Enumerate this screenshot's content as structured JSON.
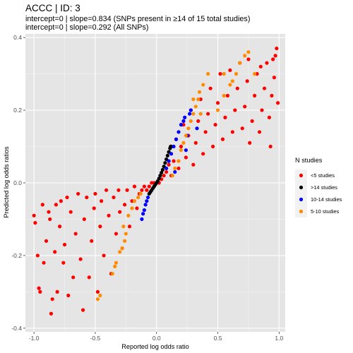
{
  "chart_data": {
    "type": "scatter",
    "title": "ACCC | ID: 3",
    "subtitle_lines": [
      "intercept=0 | slope=0.834 (SNPs present in ≥14 of 15 total studies)",
      "intercept=0 | slope=0.292 (All SNPs)"
    ],
    "xlabel": "Reported log odds ratio",
    "ylabel": "Predicted log odds ratios",
    "xlim": [
      -1.07,
      1.05
    ],
    "ylim": [
      -0.41,
      0.41
    ],
    "x_ticks": [
      -1.0,
      -0.5,
      0.0,
      0.5,
      1.0
    ],
    "x_tick_labels": [
      "-1.0",
      "-0.5",
      "0.0",
      "0.5",
      "1.0"
    ],
    "y_ticks": [
      -0.4,
      -0.2,
      0.0,
      0.2,
      0.4
    ],
    "y_tick_labels": [
      "-0.4",
      "-0.2",
      "0.0",
      "0.2",
      "0.4"
    ],
    "grid": true,
    "background": "#e5e5e5",
    "legend": {
      "title": "N studies",
      "position": "right",
      "entries": [
        {
          "label": "<5 studies",
          "color": "#ff0000"
        },
        {
          "label": ">14 studies",
          "color": "#000000"
        },
        {
          "label": "10-14 studies",
          "color": "#0000ff"
        },
        {
          "label": "5-10 studies",
          "color": "#ff8c00"
        }
      ]
    },
    "series": [
      {
        "name": "<5 studies",
        "color": "#ff0000",
        "points": [
          [
            -1.0,
            -0.09
          ],
          [
            -0.99,
            -0.11
          ],
          [
            -0.97,
            -0.2
          ],
          [
            -0.96,
            -0.29
          ],
          [
            -0.95,
            -0.3
          ],
          [
            -0.93,
            -0.06
          ],
          [
            -0.92,
            -0.22
          ],
          [
            -0.9,
            -0.16
          ],
          [
            -0.88,
            -0.08
          ],
          [
            -0.87,
            -0.1
          ],
          [
            -0.86,
            -0.36
          ],
          [
            -0.85,
            -0.32
          ],
          [
            -0.83,
            -0.19
          ],
          [
            -0.82,
            -0.06
          ],
          [
            -0.81,
            -0.3
          ],
          [
            -0.79,
            -0.12
          ],
          [
            -0.78,
            -0.05
          ],
          [
            -0.76,
            -0.22
          ],
          [
            -0.75,
            -0.17
          ],
          [
            -0.73,
            -0.04
          ],
          [
            -0.72,
            -0.31
          ],
          [
            -0.7,
            -0.08
          ],
          [
            -0.68,
            -0.26
          ],
          [
            -0.66,
            -0.14
          ],
          [
            -0.64,
            -0.03
          ],
          [
            -0.62,
            -0.21
          ],
          [
            -0.6,
            -0.35
          ],
          [
            -0.59,
            -0.1
          ],
          [
            -0.57,
            -0.04
          ],
          [
            -0.55,
            -0.26
          ],
          [
            -0.53,
            -0.16
          ],
          [
            -0.51,
            -0.07
          ],
          [
            -0.5,
            -0.03
          ],
          [
            -0.48,
            -0.3
          ],
          [
            -0.46,
            -0.12
          ],
          [
            -0.45,
            -0.05
          ],
          [
            -0.43,
            -0.2
          ],
          [
            -0.41,
            -0.02
          ],
          [
            -0.39,
            -0.09
          ],
          [
            -0.37,
            -0.25
          ],
          [
            -0.35,
            -0.04
          ],
          [
            -0.33,
            -0.14
          ],
          [
            -0.31,
            -0.02
          ],
          [
            -0.3,
            -0.08
          ],
          [
            -0.28,
            -0.18
          ],
          [
            -0.26,
            -0.06
          ],
          [
            -0.24,
            -0.02
          ],
          [
            -0.22,
            -0.12
          ],
          [
            -0.2,
            -0.05
          ],
          [
            -0.18,
            -0.01
          ],
          [
            -0.16,
            -0.07
          ],
          [
            -0.14,
            -0.03
          ],
          [
            -0.12,
            -0.02
          ],
          [
            -0.1,
            -0.01
          ],
          [
            -0.08,
            -0.02
          ],
          [
            -0.06,
            -0.01
          ],
          [
            -0.04,
            0.0
          ],
          [
            -0.02,
            0.0
          ],
          [
            0.02,
            0.0
          ],
          [
            0.04,
            0.01
          ],
          [
            0.06,
            0.02
          ],
          [
            0.08,
            0.03
          ],
          [
            0.1,
            0.05
          ],
          [
            0.12,
            0.02
          ],
          [
            0.14,
            0.06
          ],
          [
            0.16,
            0.12
          ],
          [
            0.18,
            0.04
          ],
          [
            0.2,
            0.1
          ],
          [
            0.22,
            0.16
          ],
          [
            0.24,
            0.07
          ],
          [
            0.26,
            0.13
          ],
          [
            0.28,
            0.2
          ],
          [
            0.3,
            0.05
          ],
          [
            0.32,
            0.11
          ],
          [
            0.34,
            0.17
          ],
          [
            0.36,
            0.23
          ],
          [
            0.38,
            0.08
          ],
          [
            0.4,
            0.14
          ],
          [
            0.42,
            0.19
          ],
          [
            0.44,
            0.26
          ],
          [
            0.46,
            0.1
          ],
          [
            0.48,
            0.16
          ],
          [
            0.5,
            0.22
          ],
          [
            0.52,
            0.3
          ],
          [
            0.54,
            0.12
          ],
          [
            0.56,
            0.18
          ],
          [
            0.58,
            0.24
          ],
          [
            0.6,
            0.31
          ],
          [
            0.62,
            0.14
          ],
          [
            0.64,
            0.2
          ],
          [
            0.66,
            0.26
          ],
          [
            0.68,
            0.33
          ],
          [
            0.7,
            0.15
          ],
          [
            0.72,
            0.21
          ],
          [
            0.74,
            0.28
          ],
          [
            0.76,
            0.11
          ],
          [
            0.78,
            0.17
          ],
          [
            0.8,
            0.24
          ],
          [
            0.82,
            0.3
          ],
          [
            0.84,
            0.14
          ],
          [
            0.86,
            0.2
          ],
          [
            0.88,
            0.26
          ],
          [
            0.9,
            0.33
          ],
          [
            0.92,
            0.18
          ],
          [
            0.94,
            0.24
          ],
          [
            0.96,
            0.29
          ],
          [
            0.98,
            0.37
          ],
          [
            0.99,
            0.22
          ],
          [
            0.97,
            0.35
          ],
          [
            0.95,
            0.34
          ],
          [
            0.93,
            0.1
          ],
          [
            0.85,
            0.32
          ],
          [
            0.75,
            0.34
          ]
        ]
      },
      {
        "name": ">14 studies",
        "color": "#000000",
        "points": [
          [
            -0.06,
            -0.03
          ],
          [
            -0.05,
            -0.025
          ],
          [
            -0.04,
            -0.02
          ],
          [
            -0.03,
            -0.015
          ],
          [
            -0.02,
            -0.01
          ],
          [
            -0.01,
            -0.005
          ],
          [
            0.0,
            0.0
          ],
          [
            0.01,
            0.005
          ],
          [
            0.02,
            0.012
          ],
          [
            0.03,
            0.02
          ],
          [
            0.04,
            0.028
          ],
          [
            0.05,
            0.036
          ],
          [
            0.06,
            0.045
          ],
          [
            0.07,
            0.055
          ],
          [
            0.08,
            0.065
          ],
          [
            0.09,
            0.075
          ],
          [
            0.1,
            0.085
          ],
          [
            0.11,
            0.095
          ],
          [
            0.115,
            0.1
          ],
          [
            0.12,
            0.1
          ]
        ]
      },
      {
        "name": "10-14 studies",
        "color": "#0000ff",
        "points": [
          [
            -0.12,
            -0.1
          ],
          [
            -0.11,
            -0.085
          ],
          [
            -0.1,
            -0.075
          ],
          [
            -0.09,
            -0.06
          ],
          [
            -0.08,
            -0.05
          ],
          [
            -0.07,
            -0.04
          ],
          [
            0.08,
            0.04
          ],
          [
            0.1,
            0.06
          ],
          [
            0.12,
            0.08
          ],
          [
            0.14,
            0.1
          ],
          [
            0.16,
            0.12
          ],
          [
            0.18,
            0.14
          ],
          [
            0.2,
            0.16
          ],
          [
            0.22,
            0.17
          ],
          [
            0.25,
            0.13
          ],
          [
            0.28,
            0.2
          ],
          [
            0.33,
            0.15
          ],
          [
            0.27,
            0.19
          ],
          [
            0.24,
            0.09
          ],
          [
            0.15,
            0.03
          ],
          [
            0.23,
            0.18
          ]
        ]
      },
      {
        "name": "5-10 studies",
        "color": "#ff8c00",
        "points": [
          [
            -0.48,
            -0.32
          ],
          [
            -0.46,
            -0.31
          ],
          [
            -0.36,
            -0.25
          ],
          [
            -0.33,
            -0.22
          ],
          [
            -0.3,
            -0.19
          ],
          [
            -0.28,
            -0.18
          ],
          [
            -0.27,
            -0.12
          ],
          [
            -0.25,
            -0.14
          ],
          [
            -0.23,
            -0.09
          ],
          [
            -0.2,
            -0.07
          ],
          [
            -0.18,
            -0.05
          ],
          [
            -0.15,
            -0.04
          ],
          [
            -0.13,
            -0.03
          ],
          [
            -0.34,
            -0.23
          ],
          [
            -0.26,
            -0.16
          ],
          [
            0.13,
            0.02
          ],
          [
            0.15,
            0.04
          ],
          [
            0.18,
            0.06
          ],
          [
            0.2,
            0.09
          ],
          [
            0.22,
            0.11
          ],
          [
            0.24,
            0.13
          ],
          [
            0.26,
            0.15
          ],
          [
            0.28,
            0.17
          ],
          [
            0.3,
            0.19
          ],
          [
            0.32,
            0.21
          ],
          [
            0.34,
            0.23
          ],
          [
            0.35,
            0.25
          ],
          [
            0.36,
            0.19
          ],
          [
            0.38,
            0.27
          ],
          [
            0.42,
            0.3
          ],
          [
            0.5,
            0.2
          ],
          [
            0.55,
            0.24
          ],
          [
            0.6,
            0.27
          ],
          [
            0.62,
            0.28
          ],
          [
            0.65,
            0.3
          ],
          [
            0.68,
            0.33
          ],
          [
            0.72,
            0.35
          ],
          [
            0.75,
            0.36
          ],
          [
            0.8,
            0.3
          ],
          [
            0.3,
            0.23
          ],
          [
            0.55,
            0.3
          ]
        ]
      }
    ]
  }
}
